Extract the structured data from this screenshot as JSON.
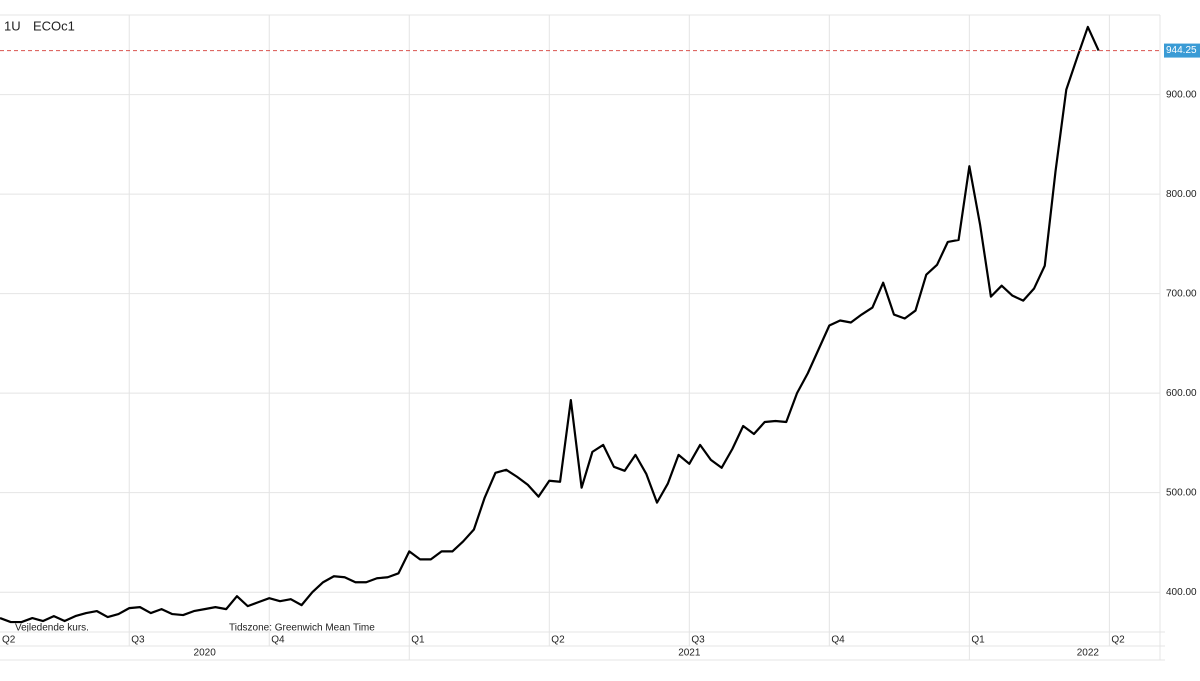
{
  "header": {
    "interval": "1U",
    "symbol": "ECOc1"
  },
  "footnotes": {
    "note": "Vejledende kurs.",
    "timezone": "Tidszone: Greenwich Mean Time"
  },
  "chart_data": {
    "type": "line",
    "series": [
      {
        "name": "ECOc1",
        "color": "#000000",
        "values": [
          374,
          370,
          370,
          374,
          371,
          376,
          371,
          376,
          379,
          381,
          375,
          378,
          384,
          385,
          379,
          383,
          378,
          377,
          381,
          383,
          385,
          383,
          396,
          386,
          390,
          394,
          391,
          393,
          387,
          400,
          410,
          416,
          415,
          410,
          410,
          414,
          415,
          419,
          441,
          433,
          433,
          441,
          441,
          451,
          463,
          495,
          520,
          523,
          516,
          508,
          496,
          512,
          511,
          593,
          505,
          541,
          548,
          526,
          522,
          538,
          519,
          490,
          509,
          538,
          529,
          548,
          533,
          525,
          544,
          567,
          559,
          571,
          572,
          571,
          600,
          620,
          644,
          668,
          673,
          671,
          679,
          686,
          711,
          679,
          675,
          683,
          719,
          729,
          752,
          754,
          828,
          769,
          697,
          708,
          698,
          693,
          705,
          728,
          823,
          905,
          937,
          968,
          944.25
        ]
      }
    ],
    "ylim": [
      360,
      980
    ],
    "yticks": [
      {
        "value": 400,
        "label": "400.00"
      },
      {
        "value": 500,
        "label": "500.00"
      },
      {
        "value": 600,
        "label": "600.00"
      },
      {
        "value": 700,
        "label": "700.00"
      },
      {
        "value": 800,
        "label": "800.00"
      },
      {
        "value": 900,
        "label": "900.00"
      }
    ],
    "xlim": [
      0,
      107.7
    ],
    "xticks": [
      {
        "value": -1,
        "label": "Q2"
      },
      {
        "value": 12,
        "label": "Q3"
      },
      {
        "value": 25,
        "label": "Q4"
      },
      {
        "value": 38,
        "label": "Q1"
      },
      {
        "value": 51,
        "label": "Q2"
      },
      {
        "value": 64,
        "label": "Q3"
      },
      {
        "value": 77,
        "label": "Q4"
      },
      {
        "value": 90,
        "label": "Q1"
      },
      {
        "value": 103,
        "label": "Q2"
      }
    ],
    "year_ticks": [
      {
        "value": 19,
        "label": "2020"
      },
      {
        "value": 64,
        "label": "2021"
      },
      {
        "value": 101,
        "label": "2022"
      }
    ],
    "year_bounds": [
      38,
      90
    ],
    "grid": true,
    "last_line_color": "#d9534f",
    "last_label_color": "#3a9bd5"
  }
}
